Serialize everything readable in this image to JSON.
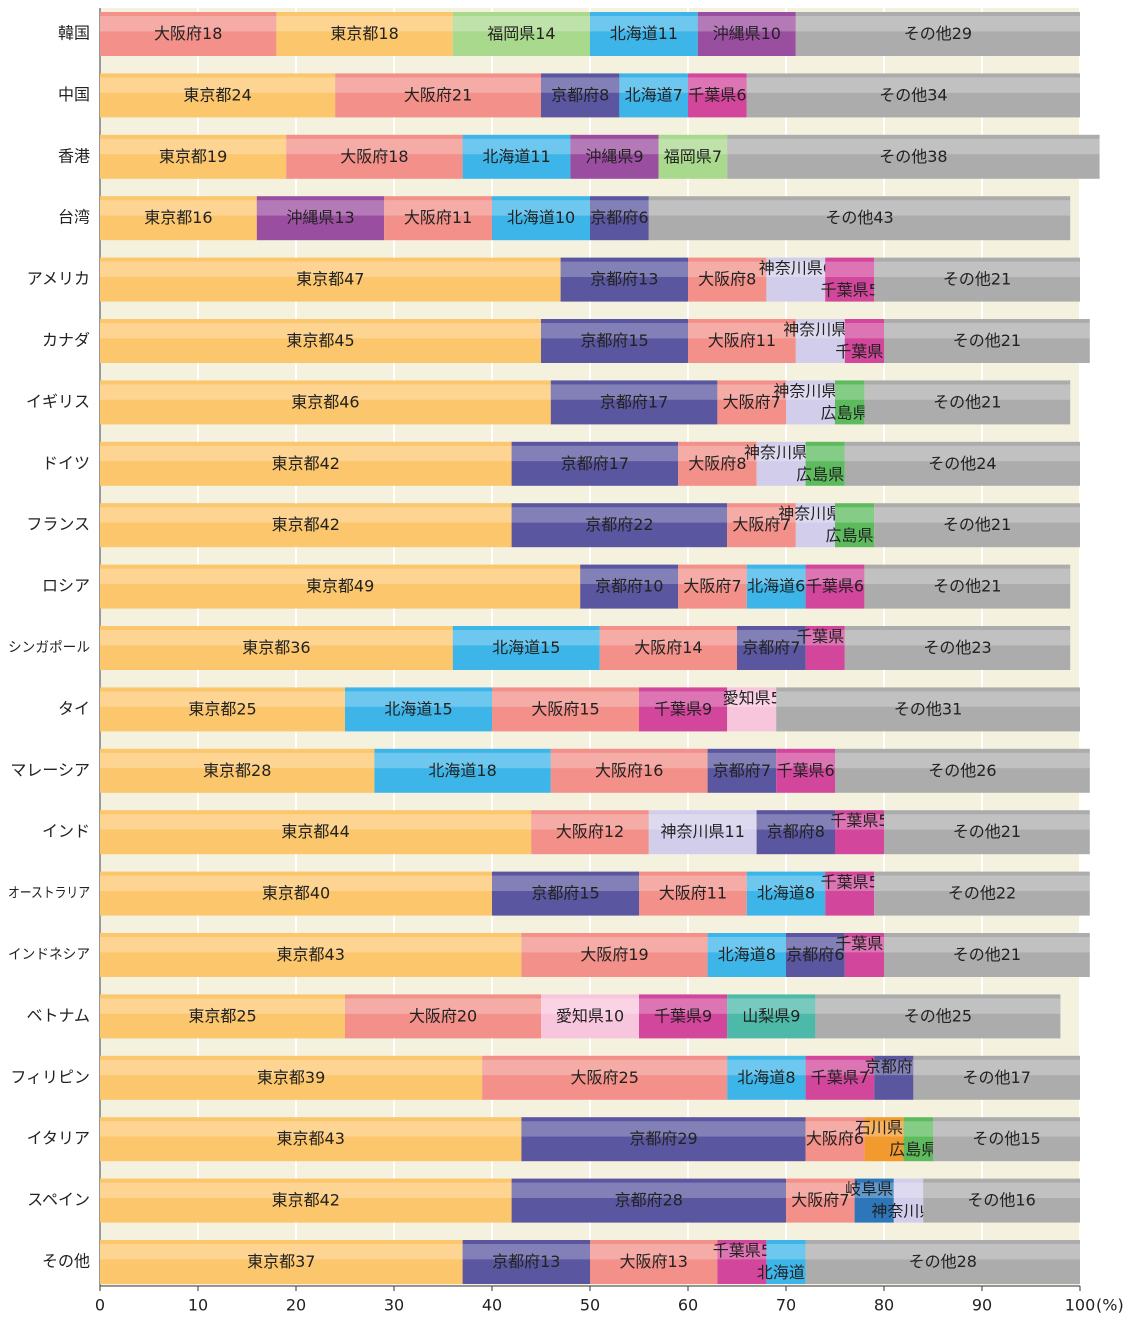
{
  "chart_data": {
    "type": "stacked_bar_h",
    "xlim": [
      0,
      100
    ],
    "xticks": [
      0,
      10,
      20,
      30,
      40,
      50,
      60,
      70,
      80,
      90,
      100
    ],
    "xlabel": "(%)",
    "grid": true,
    "palette": {
      "東京都": "#fcc66c",
      "大阪府": "#f29089",
      "福岡県": "#a8d98c",
      "北海道": "#3db5e8",
      "沖縄県": "#9a4e9f",
      "その他": "#acacac",
      "京都府": "#5a569f",
      "千葉県": "#d2469b",
      "神奈川県": "#d2cdea",
      "広島県": "#5dbb5e",
      "愛知県": "#f8c6dc",
      "山梨県": "#4cb9a9",
      "石川県": "#f39a2e",
      "岐阜県": "#2d76ba"
    },
    "bars": [
      {
        "category": "韓国",
        "segments": [
          {
            "name": "大阪府",
            "value": 18
          },
          {
            "name": "東京都",
            "value": 18
          },
          {
            "name": "福岡県",
            "value": 14
          },
          {
            "name": "北海道",
            "value": 11
          },
          {
            "name": "沖縄県",
            "value": 10
          },
          {
            "name": "その他",
            "value": 29
          }
        ]
      },
      {
        "category": "中国",
        "segments": [
          {
            "name": "東京都",
            "value": 24
          },
          {
            "name": "大阪府",
            "value": 21
          },
          {
            "name": "京都府",
            "value": 8
          },
          {
            "name": "北海道",
            "value": 7
          },
          {
            "name": "千葉県",
            "value": 6
          },
          {
            "name": "その他",
            "value": 34
          }
        ]
      },
      {
        "category": "香港",
        "segments": [
          {
            "name": "東京都",
            "value": 19
          },
          {
            "name": "大阪府",
            "value": 18
          },
          {
            "name": "北海道",
            "value": 11
          },
          {
            "name": "沖縄県",
            "value": 9
          },
          {
            "name": "福岡県",
            "value": 7
          },
          {
            "name": "その他",
            "value": 38
          }
        ]
      },
      {
        "category": "台湾",
        "segments": [
          {
            "name": "東京都",
            "value": 16
          },
          {
            "name": "沖縄県",
            "value": 13
          },
          {
            "name": "大阪府",
            "value": 11
          },
          {
            "name": "北海道",
            "value": 10
          },
          {
            "name": "京都府",
            "value": 6
          },
          {
            "name": "その他",
            "value": 43
          }
        ]
      },
      {
        "category": "アメリカ",
        "segments": [
          {
            "name": "東京都",
            "value": 47
          },
          {
            "name": "京都府",
            "value": 13
          },
          {
            "name": "大阪府",
            "value": 8
          },
          {
            "name": "神奈川県",
            "value": 6
          },
          {
            "name": "千葉県",
            "value": 5
          },
          {
            "name": "その他",
            "value": 21
          }
        ]
      },
      {
        "category": "カナダ",
        "segments": [
          {
            "name": "東京都",
            "value": 45
          },
          {
            "name": "京都府",
            "value": 15
          },
          {
            "name": "大阪府",
            "value": 11
          },
          {
            "name": "神奈川県",
            "value": 5
          },
          {
            "name": "千葉県",
            "value": 4
          },
          {
            "name": "その他",
            "value": 21
          }
        ]
      },
      {
        "category": "イギリス",
        "segments": [
          {
            "name": "東京都",
            "value": 46
          },
          {
            "name": "京都府",
            "value": 17
          },
          {
            "name": "大阪府",
            "value": 7
          },
          {
            "name": "神奈川県",
            "value": 5
          },
          {
            "name": "広島県",
            "value": 3
          },
          {
            "name": "その他",
            "value": 21
          }
        ]
      },
      {
        "category": "ドイツ",
        "segments": [
          {
            "name": "東京都",
            "value": 42
          },
          {
            "name": "京都府",
            "value": 17
          },
          {
            "name": "大阪府",
            "value": 8
          },
          {
            "name": "神奈川県",
            "value": 5
          },
          {
            "name": "広島県",
            "value": 4
          },
          {
            "name": "その他",
            "value": 24
          }
        ]
      },
      {
        "category": "フランス",
        "segments": [
          {
            "name": "東京都",
            "value": 42
          },
          {
            "name": "京都府",
            "value": 22
          },
          {
            "name": "大阪府",
            "value": 7
          },
          {
            "name": "神奈川県",
            "value": 4
          },
          {
            "name": "広島県",
            "value": 4
          },
          {
            "name": "その他",
            "value": 21
          }
        ]
      },
      {
        "category": "ロシア",
        "segments": [
          {
            "name": "東京都",
            "value": 49
          },
          {
            "name": "京都府",
            "value": 10
          },
          {
            "name": "大阪府",
            "value": 7
          },
          {
            "name": "北海道",
            "value": 6
          },
          {
            "name": "千葉県",
            "value": 6
          },
          {
            "name": "その他",
            "value": 21
          }
        ]
      },
      {
        "category": "シンガポール",
        "segments": [
          {
            "name": "東京都",
            "value": 36
          },
          {
            "name": "北海道",
            "value": 15
          },
          {
            "name": "大阪府",
            "value": 14
          },
          {
            "name": "京都府",
            "value": 7
          },
          {
            "name": "千葉県",
            "value": 4
          },
          {
            "name": "その他",
            "value": 23
          }
        ]
      },
      {
        "category": "タイ",
        "segments": [
          {
            "name": "東京都",
            "value": 25
          },
          {
            "name": "北海道",
            "value": 15
          },
          {
            "name": "大阪府",
            "value": 15
          },
          {
            "name": "千葉県",
            "value": 9
          },
          {
            "name": "愛知県",
            "value": 5
          },
          {
            "name": "その他",
            "value": 31
          }
        ]
      },
      {
        "category": "マレーシア",
        "segments": [
          {
            "name": "東京都",
            "value": 28
          },
          {
            "name": "北海道",
            "value": 18
          },
          {
            "name": "大阪府",
            "value": 16
          },
          {
            "name": "京都府",
            "value": 7
          },
          {
            "name": "千葉県",
            "value": 6
          },
          {
            "name": "その他",
            "value": 26
          }
        ]
      },
      {
        "category": "インド",
        "segments": [
          {
            "name": "東京都",
            "value": 44
          },
          {
            "name": "大阪府",
            "value": 12
          },
          {
            "name": "神奈川県",
            "value": 11
          },
          {
            "name": "京都府",
            "value": 8
          },
          {
            "name": "千葉県",
            "value": 5
          },
          {
            "name": "その他",
            "value": 21
          }
        ]
      },
      {
        "category": "オーストラリア",
        "segments": [
          {
            "name": "東京都",
            "value": 40
          },
          {
            "name": "京都府",
            "value": 15
          },
          {
            "name": "大阪府",
            "value": 11
          },
          {
            "name": "北海道",
            "value": 8
          },
          {
            "name": "千葉県",
            "value": 5
          },
          {
            "name": "その他",
            "value": 22
          }
        ]
      },
      {
        "category": "インドネシア",
        "segments": [
          {
            "name": "東京都",
            "value": 43
          },
          {
            "name": "大阪府",
            "value": 19
          },
          {
            "name": "北海道",
            "value": 8
          },
          {
            "name": "京都府",
            "value": 6
          },
          {
            "name": "千葉県",
            "value": 4
          },
          {
            "name": "その他",
            "value": 21
          }
        ]
      },
      {
        "category": "ベトナム",
        "segments": [
          {
            "name": "東京都",
            "value": 25
          },
          {
            "name": "大阪府",
            "value": 20
          },
          {
            "name": "愛知県",
            "value": 10
          },
          {
            "name": "千葉県",
            "value": 9
          },
          {
            "name": "山梨県",
            "value": 9
          },
          {
            "name": "その他",
            "value": 25
          }
        ]
      },
      {
        "category": "フィリピン",
        "segments": [
          {
            "name": "東京都",
            "value": 39
          },
          {
            "name": "大阪府",
            "value": 25
          },
          {
            "name": "北海道",
            "value": 8
          },
          {
            "name": "千葉県",
            "value": 7
          },
          {
            "name": "京都府",
            "value": 4
          },
          {
            "name": "その他",
            "value": 17
          }
        ]
      },
      {
        "category": "イタリア",
        "segments": [
          {
            "name": "東京都",
            "value": 43
          },
          {
            "name": "京都府",
            "value": 29
          },
          {
            "name": "大阪府",
            "value": 6
          },
          {
            "name": "石川県",
            "value": 4
          },
          {
            "name": "広島県",
            "value": 3
          },
          {
            "name": "その他",
            "value": 15
          }
        ]
      },
      {
        "category": "スペイン",
        "segments": [
          {
            "name": "東京都",
            "value": 42
          },
          {
            "name": "京都府",
            "value": 28
          },
          {
            "name": "大阪府",
            "value": 7
          },
          {
            "name": "岐阜県",
            "value": 4
          },
          {
            "name": "神奈川県",
            "value": 3
          },
          {
            "name": "その他",
            "value": 16
          }
        ]
      },
      {
        "category": "その他",
        "segments": [
          {
            "name": "東京都",
            "value": 37
          },
          {
            "name": "京都府",
            "value": 13
          },
          {
            "name": "大阪府",
            "value": 13
          },
          {
            "name": "千葉県",
            "value": 5
          },
          {
            "name": "北海道",
            "value": 4
          },
          {
            "name": "その他",
            "value": 28
          }
        ]
      }
    ]
  }
}
